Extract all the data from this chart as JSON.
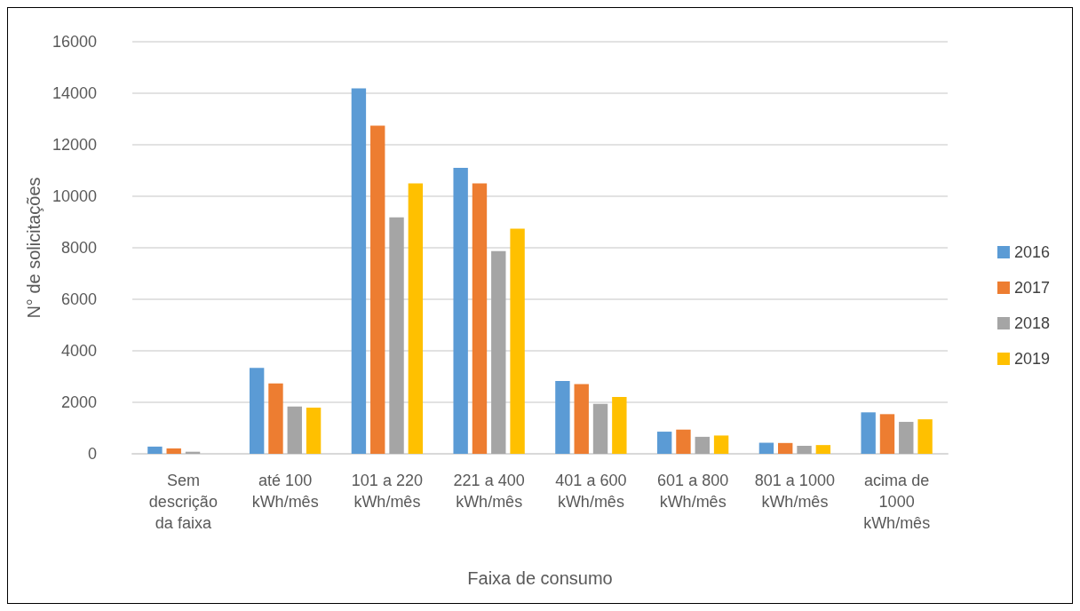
{
  "chart_data": {
    "type": "bar",
    "xlabel": "Faixa de consumo",
    "ylabel": "N° de solicitações",
    "categories": [
      "Sem\ndescrição\nda faixa",
      "até 100\nkWh/mês",
      "101 a 220\nkWh/mês",
      "221 a 400\nkWh/mês",
      "401 a 600\nkWh/mês",
      "601 a 800\nkWh/mês",
      "801 a 1000\nkWh/mês",
      "acima de\n1000\nkWh/mês"
    ],
    "series": [
      {
        "name": "2016",
        "color": "#5b9bd5",
        "values": [
          280,
          3340,
          14190,
          11100,
          2830,
          860,
          430,
          1610
        ]
      },
      {
        "name": "2017",
        "color": "#ed7d31",
        "values": [
          210,
          2730,
          12740,
          10500,
          2710,
          940,
          420,
          1540
        ]
      },
      {
        "name": "2018",
        "color": "#a5a5a5",
        "values": [
          80,
          1840,
          9180,
          7870,
          1940,
          660,
          310,
          1240
        ]
      },
      {
        "name": "2019",
        "color": "#ffc000",
        "values": [
          0,
          1790,
          10500,
          8740,
          2210,
          710,
          340,
          1340
        ]
      }
    ],
    "ylim": [
      0,
      16000
    ],
    "yticks": [
      0,
      2000,
      4000,
      6000,
      8000,
      10000,
      12000,
      14000,
      16000
    ],
    "grid": "y",
    "legend": "right"
  }
}
